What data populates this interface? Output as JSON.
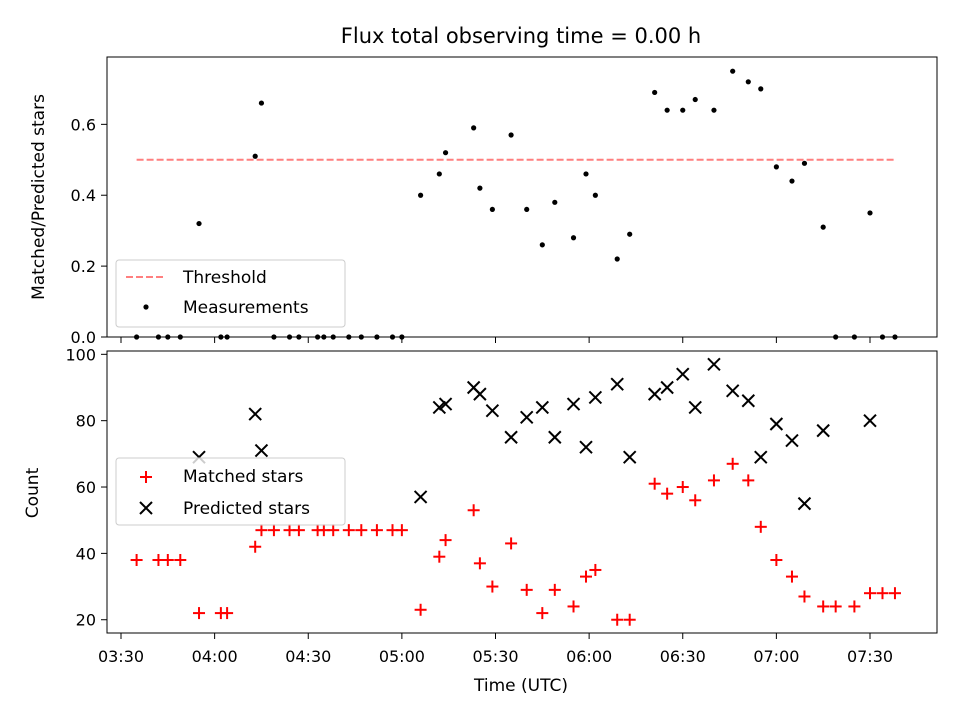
{
  "chart_data": [
    {
      "type": "scatter",
      "title": "Flux total observing time = 0.00 h",
      "ylabel": "Matched/Predicted stars",
      "xlabel": "",
      "ylim": [
        0,
        0.79
      ],
      "yticks": [
        "0.0",
        "0.2",
        "0.4",
        "0.6"
      ],
      "threshold": {
        "name": "Threshold",
        "value": 0.5,
        "x_start": "03:35",
        "x_end": "07:38",
        "color": "#ff7f7f"
      },
      "legend": {
        "placement": "lower-left",
        "entries": [
          "Threshold",
          "Measurements"
        ]
      },
      "series": [
        {
          "name": "Measurements",
          "color": "#000000",
          "x": [
            "03:35",
            "03:42",
            "03:45",
            "03:49",
            "03:55",
            "04:02",
            "04:04",
            "04:13",
            "04:15",
            "04:19",
            "04:24",
            "04:27",
            "04:33",
            "04:35",
            "04:38",
            "04:43",
            "04:47",
            "04:52",
            "04:57",
            "05:00",
            "05:06",
            "05:12",
            "05:14",
            "05:23",
            "05:25",
            "05:29",
            "05:35",
            "05:40",
            "05:45",
            "05:49",
            "05:55",
            "05:59",
            "06:02",
            "06:09",
            "06:13",
            "06:21",
            "06:25",
            "06:30",
            "06:34",
            "06:40",
            "06:46",
            "06:51",
            "06:55",
            "07:00",
            "07:05",
            "07:09",
            "07:15",
            "07:19",
            "07:25",
            "07:30",
            "07:34",
            "07:38"
          ],
          "y": [
            0,
            0,
            0,
            0,
            0.32,
            0,
            0,
            0.51,
            0.66,
            0,
            0,
            0,
            0,
            0,
            0,
            0,
            0,
            0,
            0,
            0,
            0.4,
            0.46,
            0.52,
            0.59,
            0.42,
            0.36,
            0.57,
            0.36,
            0.26,
            0.38,
            0.28,
            0.46,
            0.4,
            0.22,
            0.29,
            0.69,
            0.64,
            0.64,
            0.67,
            0.64,
            0.75,
            0.72,
            0.7,
            0.48,
            0.44,
            0.49,
            0.31,
            0,
            0,
            0.35,
            0,
            0
          ]
        }
      ]
    },
    {
      "type": "scatter",
      "title": "",
      "xlabel": "Time (UTC)",
      "ylabel": "Count",
      "ylim": [
        16,
        101
      ],
      "yticks": [
        "20",
        "40",
        "60",
        "80",
        "100"
      ],
      "xticks": [
        "03:30",
        "04:00",
        "04:30",
        "05:00",
        "05:30",
        "06:00",
        "06:30",
        "07:00",
        "07:30"
      ],
      "legend": {
        "placement": "center-left",
        "entries": [
          "Matched stars",
          "Predicted stars"
        ]
      },
      "series": [
        {
          "name": "Matched stars",
          "marker": "+",
          "color": "#ff0000",
          "x": [
            "03:35",
            "03:42",
            "03:45",
            "03:49",
            "03:55",
            "04:02",
            "04:04",
            "04:13",
            "04:15",
            "04:19",
            "04:24",
            "04:27",
            "04:33",
            "04:35",
            "04:38",
            "04:43",
            "04:47",
            "04:52",
            "04:57",
            "05:00",
            "05:06",
            "05:12",
            "05:14",
            "05:23",
            "05:25",
            "05:29",
            "05:35",
            "05:40",
            "05:45",
            "05:49",
            "05:55",
            "05:59",
            "06:02",
            "06:09",
            "06:13",
            "06:21",
            "06:25",
            "06:30",
            "06:34",
            "06:40",
            "06:46",
            "06:51",
            "06:55",
            "07:00",
            "07:05",
            "07:09",
            "07:15",
            "07:19",
            "07:25",
            "07:30",
            "07:34",
            "07:38"
          ],
          "y": [
            38,
            38,
            38,
            38,
            22,
            22,
            22,
            42,
            47,
            47,
            47,
            47,
            47,
            47,
            47,
            47,
            47,
            47,
            47,
            47,
            23,
            39,
            44,
            53,
            37,
            30,
            43,
            29,
            22,
            29,
            24,
            33,
            35,
            20,
            20,
            61,
            58,
            60,
            56,
            62,
            67,
            62,
            48,
            38,
            33,
            27,
            24,
            24,
            24,
            28,
            28,
            28
          ]
        },
        {
          "name": "Predicted stars",
          "marker": "x",
          "color": "#000000",
          "x": [
            "03:55",
            "04:13",
            "04:15",
            "05:06",
            "05:12",
            "05:14",
            "05:23",
            "05:25",
            "05:29",
            "05:35",
            "05:40",
            "05:45",
            "05:49",
            "05:55",
            "05:59",
            "06:02",
            "06:09",
            "06:13",
            "06:21",
            "06:25",
            "06:30",
            "06:34",
            "06:40",
            "06:46",
            "06:51",
            "06:55",
            "07:00",
            "07:05",
            "07:09",
            "07:15",
            "07:30"
          ],
          "y": [
            69,
            82,
            71,
            57,
            84,
            85,
            90,
            88,
            83,
            75,
            81,
            84,
            75,
            85,
            72,
            87,
            91,
            69,
            88,
            90,
            94,
            84,
            97,
            89,
            86,
            69,
            79,
            74,
            55,
            77,
            80
          ]
        }
      ]
    }
  ]
}
